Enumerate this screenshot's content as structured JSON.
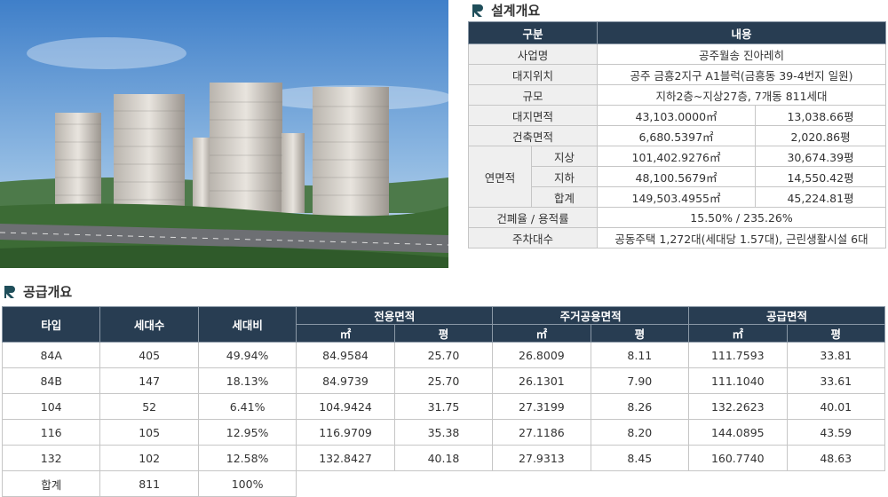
{
  "design": {
    "title": "설계개요",
    "header": [
      "구분",
      "내용"
    ],
    "rows_top": [
      [
        "사업명",
        "공주월송 진아레히"
      ],
      [
        "대지위치",
        "공주 금흥2지구 A1블럭(금흥동 39-4번지 일원)"
      ],
      [
        "규모",
        "지하2층~지상27층, 7개동 811세대"
      ],
      [
        "대지면적",
        "43,103.0000㎡",
        "13,038.66평"
      ],
      [
        "건축면적",
        "6,680.5397㎡",
        "2,020.86평"
      ]
    ],
    "gross_area": {
      "label": "연면적",
      "rows": [
        [
          "지상",
          "101,402.9276㎡",
          "30,674.39평"
        ],
        [
          "지하",
          "48,100.5679㎡",
          "14,550.42평"
        ],
        [
          "합계",
          "149,503.4955㎡",
          "45,224.81평"
        ]
      ]
    },
    "rows_bottom": [
      [
        "건폐율 / 용적률",
        "15.50% / 235.26%"
      ],
      [
        "주차대수",
        "공동주택 1,272대(세대당 1.57대), 근린생활시설 6대"
      ]
    ]
  },
  "supply": {
    "title": "공급개요",
    "headers": [
      "타입",
      "세대수",
      "세대비"
    ],
    "groups": [
      "전용면적",
      "주거공용면적",
      "공급면적"
    ],
    "subheaders": [
      "㎡",
      "평",
      "㎡",
      "평",
      "㎡",
      "평"
    ],
    "rows": [
      [
        "84A",
        "405",
        "49.94%",
        "84.9584",
        "25.70",
        "26.8009",
        "8.11",
        "111.7593",
        "33.81"
      ],
      [
        "84B",
        "147",
        "18.13%",
        "84.9739",
        "25.70",
        "26.1301",
        "7.90",
        "111.1040",
        "33.61"
      ],
      [
        "104",
        "52",
        "6.41%",
        "104.9424",
        "31.75",
        "27.3199",
        "8.26",
        "132.2623",
        "40.01"
      ],
      [
        "116",
        "105",
        "12.95%",
        "116.9709",
        "35.38",
        "27.1186",
        "8.20",
        "144.0895",
        "43.59"
      ],
      [
        "132",
        "102",
        "12.58%",
        "132.8427",
        "40.18",
        "27.9313",
        "8.45",
        "160.7740",
        "48.63"
      ]
    ],
    "total": [
      "합계",
      "811",
      "100%"
    ]
  }
}
